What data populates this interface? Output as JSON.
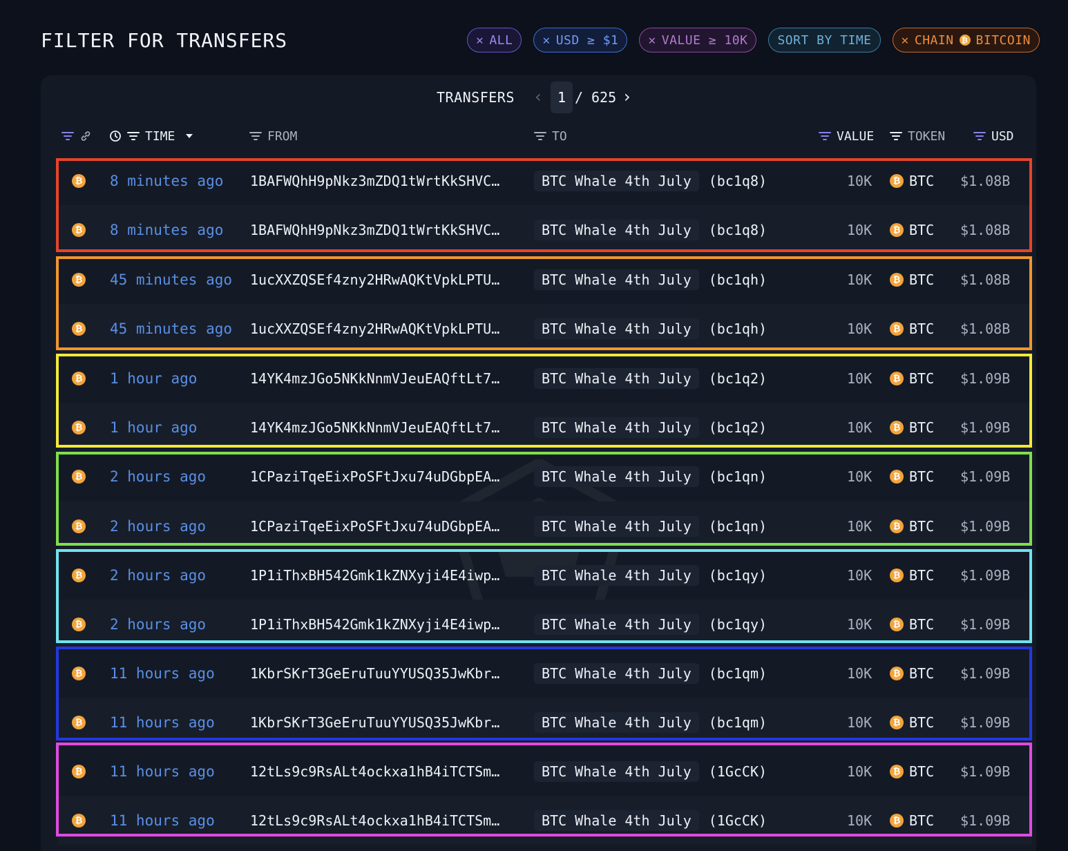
{
  "header": {
    "title": "FILTER FOR TRANSFERS",
    "chips": {
      "all": "ALL",
      "usd": "USD ≥ $1",
      "value": "VALUE ≥ 10K",
      "sort": "SORT BY TIME",
      "chain_prefix": "CHAIN",
      "chain_value": "BITCOIN"
    }
  },
  "pager": {
    "label": "TRANSFERS",
    "current": "1",
    "separator": "/",
    "total": "625"
  },
  "columns": {
    "time": "TIME",
    "from": "FROM",
    "to": "TO",
    "value": "VALUE",
    "token": "TOKEN",
    "usd": "USD"
  },
  "rows": [
    {
      "time": "8 minutes ago",
      "from": "1BAFWQhH9pNkz3mZDQ1tWrtKkSHVC…",
      "to_entity": "BTC Whale 4th July",
      "to_addr": "(bc1q8)",
      "value": "10K",
      "token": "BTC",
      "usd": "$1.08B"
    },
    {
      "time": "8 minutes ago",
      "from": "1BAFWQhH9pNkz3mZDQ1tWrtKkSHVC…",
      "to_entity": "BTC Whale 4th July",
      "to_addr": "(bc1q8)",
      "value": "10K",
      "token": "BTC",
      "usd": "$1.08B"
    },
    {
      "time": "45 minutes ago",
      "from": "1ucXXZQSEf4zny2HRwAQKtVpkLPTU…",
      "to_entity": "BTC Whale 4th July",
      "to_addr": "(bc1qh)",
      "value": "10K",
      "token": "BTC",
      "usd": "$1.08B"
    },
    {
      "time": "45 minutes ago",
      "from": "1ucXXZQSEf4zny2HRwAQKtVpkLPTU…",
      "to_entity": "BTC Whale 4th July",
      "to_addr": "(bc1qh)",
      "value": "10K",
      "token": "BTC",
      "usd": "$1.08B"
    },
    {
      "time": "1 hour ago",
      "from": "14YK4mzJGo5NKkNnmVJeuEAQftLt7…",
      "to_entity": "BTC Whale 4th July",
      "to_addr": "(bc1q2)",
      "value": "10K",
      "token": "BTC",
      "usd": "$1.09B"
    },
    {
      "time": "1 hour ago",
      "from": "14YK4mzJGo5NKkNnmVJeuEAQftLt7…",
      "to_entity": "BTC Whale 4th July",
      "to_addr": "(bc1q2)",
      "value": "10K",
      "token": "BTC",
      "usd": "$1.09B"
    },
    {
      "time": "2 hours ago",
      "from": "1CPaziTqeEixPoSFtJxu74uDGbpEA…",
      "to_entity": "BTC Whale 4th July",
      "to_addr": "(bc1qn)",
      "value": "10K",
      "token": "BTC",
      "usd": "$1.09B"
    },
    {
      "time": "2 hours ago",
      "from": "1CPaziTqeEixPoSFtJxu74uDGbpEA…",
      "to_entity": "BTC Whale 4th July",
      "to_addr": "(bc1qn)",
      "value": "10K",
      "token": "BTC",
      "usd": "$1.09B"
    },
    {
      "time": "2 hours ago",
      "from": "1P1iThxBH542Gmk1kZNXyji4E4iwp…",
      "to_entity": "BTC Whale 4th July",
      "to_addr": "(bc1qy)",
      "value": "10K",
      "token": "BTC",
      "usd": "$1.09B"
    },
    {
      "time": "2 hours ago",
      "from": "1P1iThxBH542Gmk1kZNXyji4E4iwp…",
      "to_entity": "BTC Whale 4th July",
      "to_addr": "(bc1qy)",
      "value": "10K",
      "token": "BTC",
      "usd": "$1.09B"
    },
    {
      "time": "11 hours ago",
      "from": "1KbrSKrT3GeEruTuuYYUSQ35JwKbr…",
      "to_entity": "BTC Whale 4th July",
      "to_addr": "(bc1qm)",
      "value": "10K",
      "token": "BTC",
      "usd": "$1.09B"
    },
    {
      "time": "11 hours ago",
      "from": "1KbrSKrT3GeEruTuuYYUSQ35JwKbr…",
      "to_entity": "BTC Whale 4th July",
      "to_addr": "(bc1qm)",
      "value": "10K",
      "token": "BTC",
      "usd": "$1.09B"
    },
    {
      "time": "11 hours ago",
      "from": "12tLs9c9RsALt4ockxa1hB4iTCTSm…",
      "to_entity": "BTC Whale 4th July",
      "to_addr": "(1GcCK)",
      "value": "10K",
      "token": "BTC",
      "usd": "$1.09B"
    },
    {
      "time": "11 hours ago",
      "from": "12tLs9c9RsALt4ockxa1hB4iTCTSm…",
      "to_entity": "BTC Whale 4th July",
      "to_addr": "(1GcCK)",
      "value": "10K",
      "token": "BTC",
      "usd": "$1.09B"
    }
  ],
  "highlight_colors": [
    "#e8432b",
    "#f0962d",
    "#f3e93a",
    "#7ee04a",
    "#6fe3f0",
    "#2438e0",
    "#e04ae0"
  ],
  "icons": {
    "coin": "bitcoin-icon",
    "close": "close-icon",
    "filter": "filter-icon",
    "link": "link-icon",
    "clock": "clock-icon",
    "sort": "caret-down-icon",
    "prev": "chevron-left-icon",
    "next": "chevron-right-icon"
  }
}
